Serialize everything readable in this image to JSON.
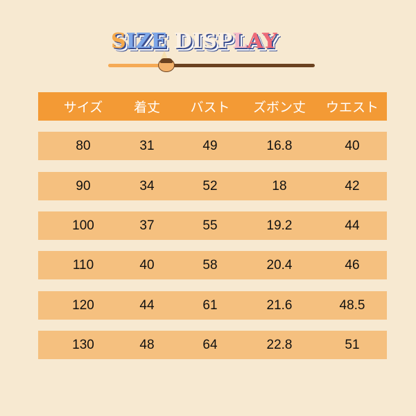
{
  "title": {
    "words": [
      {
        "text": "S",
        "color": "#f6a94a"
      },
      {
        "text": "IZE ",
        "color": "#7ea7e8"
      },
      {
        "text": "DISP",
        "color": "#fbf1e4"
      },
      {
        "text": "L",
        "color": "#f5b8c8"
      },
      {
        "text": "AY",
        "color": "#ee6a78"
      }
    ],
    "full": "SIZE DISPLAY"
  },
  "colors": {
    "background": "#f7e9d1",
    "header": "#f39a35",
    "row": "#f5c07f"
  },
  "table": {
    "headers": [
      "サイズ",
      "着丈",
      "バスト",
      "ズボン丈",
      "ウエスト"
    ],
    "rows": [
      [
        "80",
        "31",
        "49",
        "16.8",
        "40"
      ],
      [
        "90",
        "34",
        "52",
        "18",
        "42"
      ],
      [
        "100",
        "37",
        "55",
        "19.2",
        "44"
      ],
      [
        "110",
        "40",
        "58",
        "20.4",
        "46"
      ],
      [
        "120",
        "44",
        "61",
        "21.6",
        "48.5"
      ],
      [
        "130",
        "48",
        "64",
        "22.8",
        "51"
      ]
    ]
  }
}
